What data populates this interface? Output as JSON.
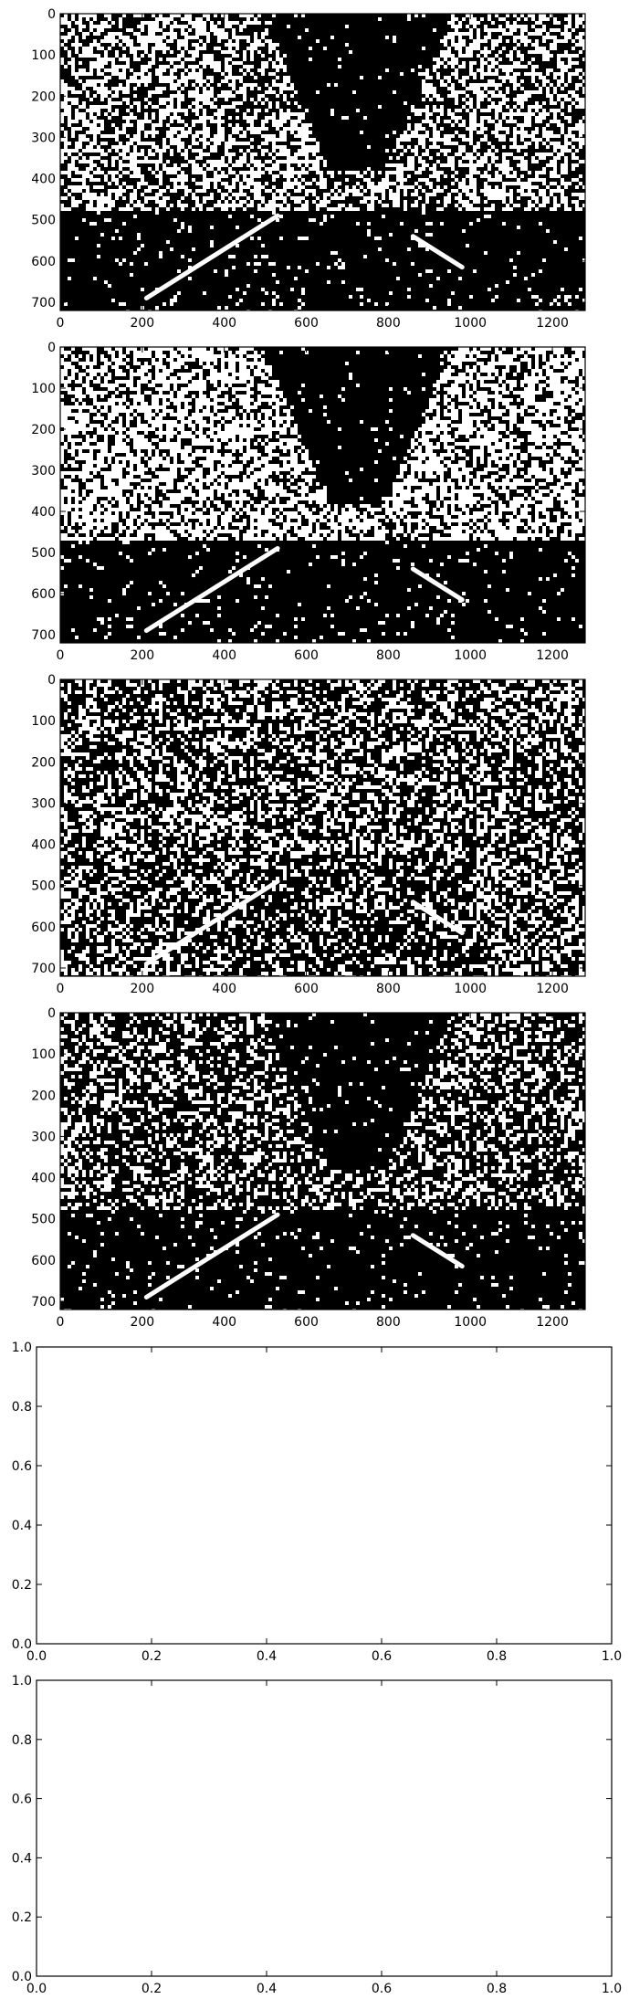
{
  "chart_data": [
    {
      "type": "heatmap",
      "description_of_values": "binary threshold mask",
      "xlim": [
        0,
        1280
      ],
      "ylim": [
        720,
        0
      ],
      "xticks": [
        0,
        200,
        400,
        600,
        800,
        1000,
        1200
      ],
      "yticks": [
        0,
        100,
        200,
        300,
        400,
        500,
        600,
        700
      ]
    },
    {
      "type": "heatmap",
      "description_of_values": "binary threshold mask",
      "xlim": [
        0,
        1280
      ],
      "ylim": [
        720,
        0
      ],
      "xticks": [
        0,
        200,
        400,
        600,
        800,
        1000,
        1200
      ],
      "yticks": [
        0,
        100,
        200,
        300,
        400,
        500,
        600,
        700
      ]
    },
    {
      "type": "heatmap",
      "description_of_values": "binary threshold mask",
      "xlim": [
        0,
        1280
      ],
      "ylim": [
        720,
        0
      ],
      "xticks": [
        0,
        200,
        400,
        600,
        800,
        1000,
        1200
      ],
      "yticks": [
        0,
        100,
        200,
        300,
        400,
        500,
        600,
        700
      ]
    },
    {
      "type": "heatmap",
      "description_of_values": "binary threshold mask",
      "xlim": [
        0,
        1280
      ],
      "ylim": [
        720,
        0
      ],
      "xticks": [
        0,
        200,
        400,
        600,
        800,
        1000,
        1200
      ],
      "yticks": [
        0,
        100,
        200,
        300,
        400,
        500,
        600,
        700
      ]
    },
    {
      "type": "scatter",
      "empty": true,
      "xlim": [
        0,
        1
      ],
      "ylim": [
        0,
        1
      ],
      "xticks": [
        "0.0",
        "0.2",
        "0.4",
        "0.6",
        "0.8",
        "1.0"
      ],
      "yticks": [
        "0.0",
        "0.2",
        "0.4",
        "0.6",
        "0.8",
        "1.0"
      ]
    },
    {
      "type": "scatter",
      "empty": true,
      "xlim": [
        0,
        1
      ],
      "ylim": [
        0,
        1
      ],
      "xticks": [
        "0.0",
        "0.2",
        "0.4",
        "0.6",
        "0.8",
        "1.0"
      ],
      "yticks": [
        "0.0",
        "0.2",
        "0.4",
        "0.6",
        "0.8",
        "1.0"
      ]
    }
  ],
  "colors": {
    "mask_on": "#ffffff",
    "mask_off": "#000000",
    "axes": "#000000"
  }
}
